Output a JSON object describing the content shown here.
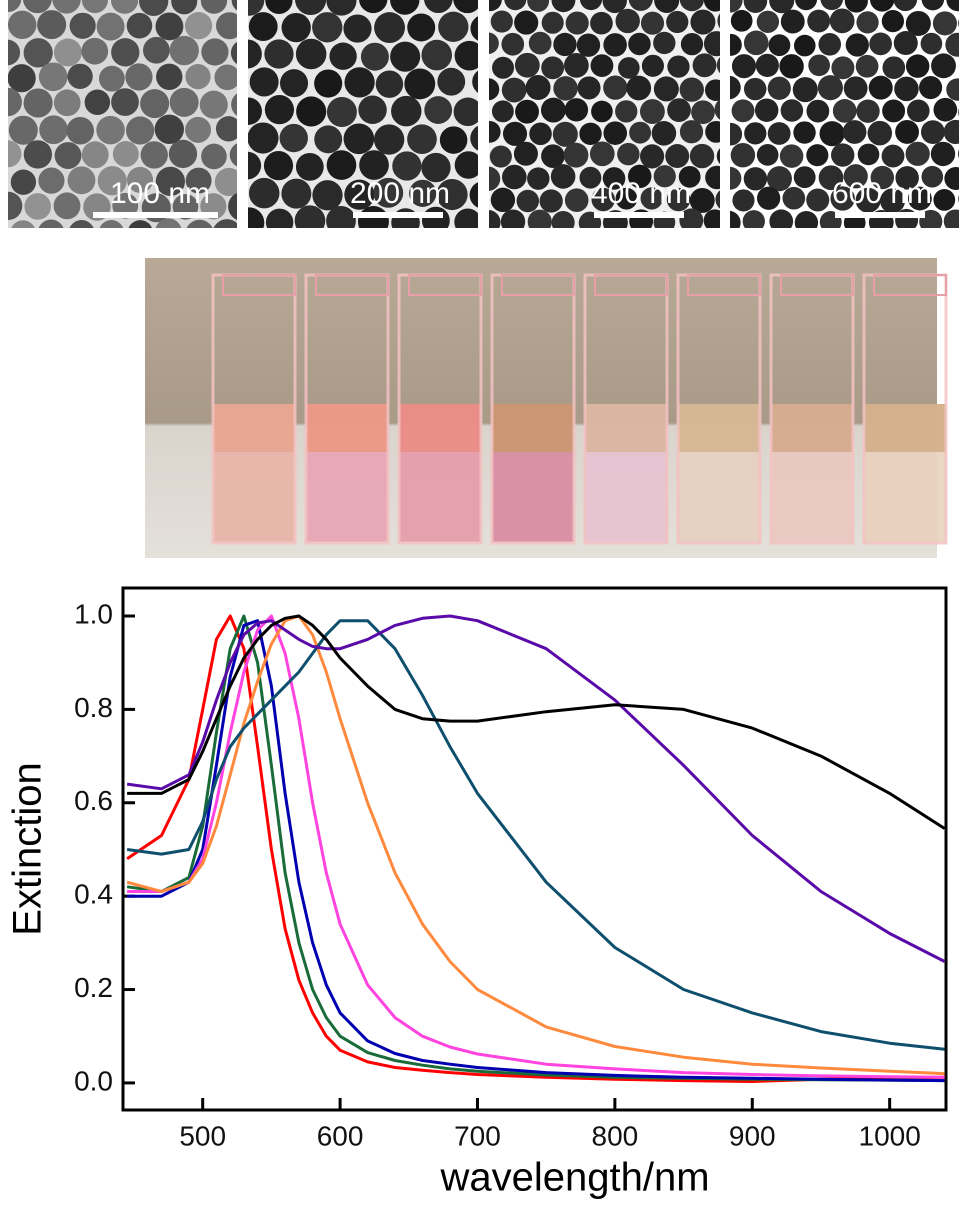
{
  "tem_images": [
    "100 nm",
    "200 nm",
    "400 nm",
    "600 nm"
  ],
  "chart_data": {
    "type": "line",
    "xlabel": "wavelength/nm",
    "ylabel": "Extinction",
    "xlim": [
      442,
      1041
    ],
    "ylim": [
      -0.058,
      1.06
    ],
    "xticks": [
      500,
      600,
      700,
      800,
      900,
      1000
    ],
    "yticks": [
      {
        "value": 0,
        "label": "0.0"
      },
      0.2,
      0.4,
      0.6,
      0.8,
      {
        "value": 1,
        "label": "1.0"
      }
    ],
    "x": [
      445,
      470,
      490,
      500,
      510,
      520,
      530,
      540,
      550,
      560,
      570,
      580,
      590,
      600,
      620,
      640,
      660,
      680,
      700,
      750,
      800,
      850,
      900,
      950,
      1000,
      1040
    ],
    "series": [
      {
        "color": "#ff0000",
        "values": [
          0.48,
          0.53,
          0.65,
          0.8,
          0.95,
          1.0,
          0.93,
          0.72,
          0.5,
          0.33,
          0.22,
          0.15,
          0.1,
          0.07,
          0.045,
          0.033,
          0.027,
          0.022,
          0.018,
          0.012,
          0.008,
          0.005,
          0.003,
          0.008,
          0.01,
          0.012
        ]
      },
      {
        "color": "#1a6b3a",
        "values": [
          0.42,
          0.41,
          0.44,
          0.55,
          0.75,
          0.93,
          1.0,
          0.9,
          0.68,
          0.45,
          0.3,
          0.2,
          0.14,
          0.1,
          0.065,
          0.048,
          0.038,
          0.03,
          0.025,
          0.017,
          0.012,
          0.01,
          0.008,
          0.007,
          0.006,
          0.005
        ]
      },
      {
        "color": "#0000b0",
        "values": [
          0.4,
          0.4,
          0.43,
          0.5,
          0.68,
          0.87,
          0.98,
          0.99,
          0.85,
          0.62,
          0.43,
          0.3,
          0.21,
          0.15,
          0.09,
          0.063,
          0.048,
          0.04,
          0.033,
          0.022,
          0.016,
          0.012,
          0.01,
          0.008,
          0.006,
          0.005
        ]
      },
      {
        "color": "#ff44e0",
        "values": [
          0.41,
          0.41,
          0.43,
          0.48,
          0.6,
          0.75,
          0.88,
          0.97,
          1.0,
          0.92,
          0.78,
          0.6,
          0.45,
          0.34,
          0.21,
          0.14,
          0.1,
          0.077,
          0.062,
          0.04,
          0.03,
          0.022,
          0.018,
          0.015,
          0.013,
          0.012
        ]
      },
      {
        "color": "#ff8a3d",
        "values": [
          0.43,
          0.41,
          0.43,
          0.47,
          0.55,
          0.66,
          0.77,
          0.86,
          0.94,
          0.99,
          1.0,
          0.96,
          0.88,
          0.78,
          0.6,
          0.45,
          0.34,
          0.26,
          0.2,
          0.12,
          0.078,
          0.055,
          0.04,
          0.032,
          0.025,
          0.02
        ]
      },
      {
        "color": "#0e4f6e",
        "values": [
          0.5,
          0.49,
          0.5,
          0.56,
          0.65,
          0.72,
          0.76,
          0.79,
          0.82,
          0.85,
          0.88,
          0.92,
          0.96,
          0.99,
          0.99,
          0.93,
          0.83,
          0.72,
          0.62,
          0.43,
          0.29,
          0.2,
          0.15,
          0.11,
          0.085,
          0.072
        ]
      },
      {
        "color": "#5a0aa8",
        "values": [
          0.64,
          0.63,
          0.66,
          0.73,
          0.82,
          0.9,
          0.96,
          0.985,
          0.99,
          0.97,
          0.95,
          0.935,
          0.93,
          0.93,
          0.95,
          0.98,
          0.995,
          1.0,
          0.99,
          0.93,
          0.82,
          0.68,
          0.53,
          0.41,
          0.32,
          0.26
        ]
      },
      {
        "color": "#000000",
        "values": [
          0.62,
          0.62,
          0.65,
          0.71,
          0.78,
          0.85,
          0.91,
          0.95,
          0.98,
          0.995,
          1.0,
          0.98,
          0.95,
          0.91,
          0.85,
          0.8,
          0.78,
          0.775,
          0.775,
          0.795,
          0.81,
          0.8,
          0.76,
          0.7,
          0.62,
          0.545
        ]
      }
    ]
  }
}
